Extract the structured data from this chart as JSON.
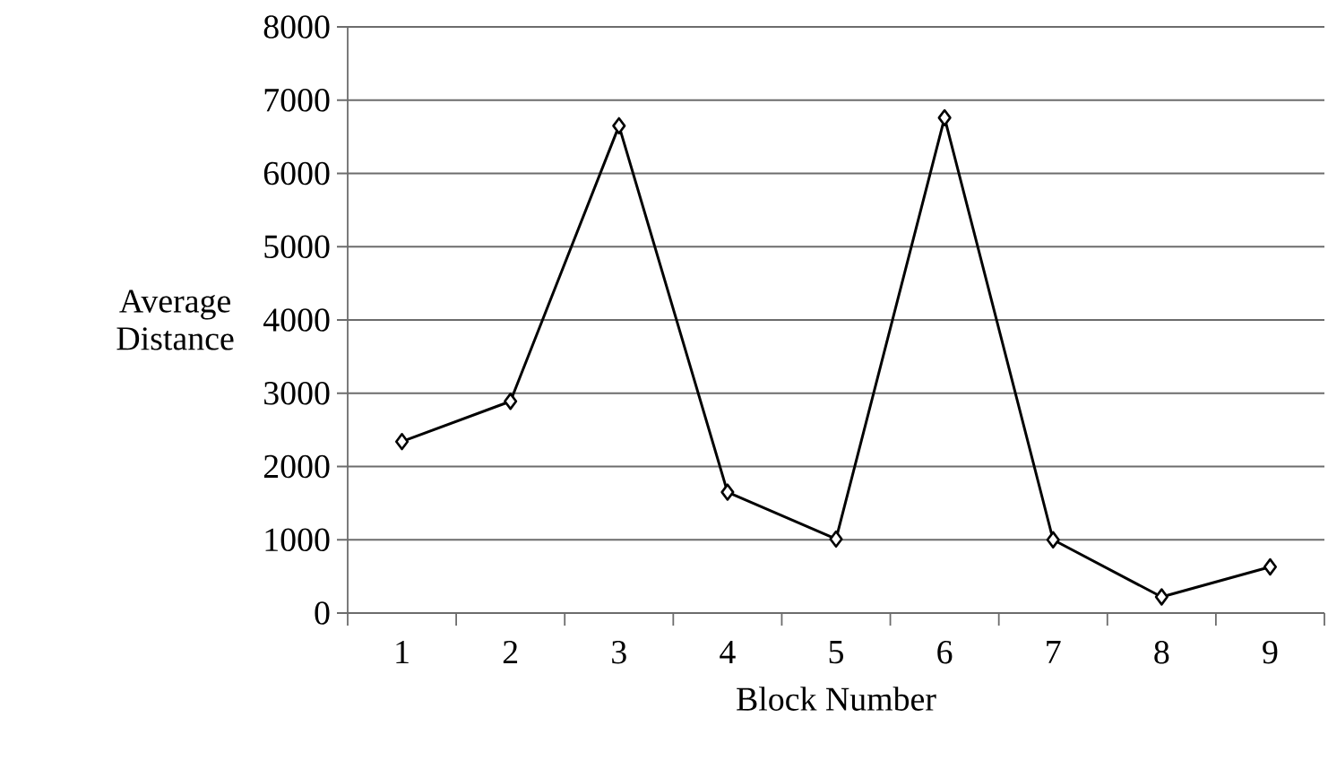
{
  "chart_data": {
    "type": "line",
    "xlabel": "Block Number",
    "ylabel": "Average Distance",
    "categories": [
      "1",
      "2",
      "3",
      "4",
      "5",
      "6",
      "7",
      "8",
      "9"
    ],
    "series": [
      {
        "color": "#000000",
        "values": [
          2340,
          2890,
          6650,
          1650,
          1010,
          6760,
          1000,
          220,
          630
        ]
      }
    ],
    "ylim": [
      0,
      8000
    ],
    "yticks": [
      0,
      1000,
      2000,
      3000,
      4000,
      5000,
      6000,
      7000,
      8000
    ],
    "grid": "y",
    "marker": "diamond",
    "line_style": "solid",
    "legend": false
  }
}
